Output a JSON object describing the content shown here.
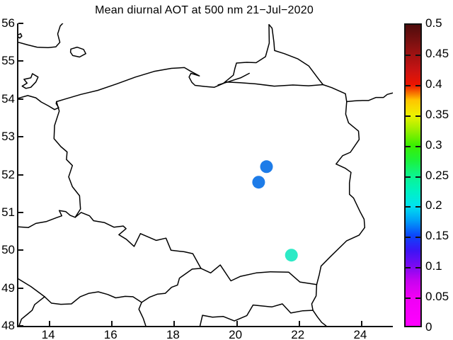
{
  "title": "Mean diurnal AOT at 500 nm 21−Jul−2020",
  "axes": {
    "x": {
      "range": [
        13,
        25
      ],
      "ticks": [
        14,
        16,
        18,
        20,
        22,
        24
      ]
    },
    "y": {
      "range": [
        48,
        56
      ],
      "ticks": [
        48,
        49,
        50,
        51,
        52,
        53,
        54,
        55,
        56
      ]
    }
  },
  "colorbar": {
    "range": [
      0,
      0.5
    ],
    "tick_values": [
      0,
      0.05,
      0.1,
      0.15,
      0.2,
      0.25,
      0.3,
      0.35,
      0.4,
      0.45,
      0.5
    ],
    "tick_labels": [
      "0",
      "0.05",
      "0.1",
      "0.15",
      "0.2",
      "0.25",
      "0.3",
      "0.35",
      "0.4",
      "0.45",
      "0.5"
    ],
    "gradient": [
      {
        "v": 0.0,
        "color": "#ff00ff"
      },
      {
        "v": 0.05,
        "color": "#ee00f4"
      },
      {
        "v": 0.075,
        "color": "#c603f0"
      },
      {
        "v": 0.1,
        "color": "#7a0af2"
      },
      {
        "v": 0.125,
        "color": "#3c14f5"
      },
      {
        "v": 0.15,
        "color": "#0b46fa"
      },
      {
        "v": 0.175,
        "color": "#00a0f8"
      },
      {
        "v": 0.2,
        "color": "#00e4ee"
      },
      {
        "v": 0.225,
        "color": "#00f2c0"
      },
      {
        "v": 0.25,
        "color": "#0cf48c"
      },
      {
        "v": 0.275,
        "color": "#1cf23a"
      },
      {
        "v": 0.3,
        "color": "#3bef00"
      },
      {
        "v": 0.325,
        "color": "#9aef00"
      },
      {
        "v": 0.35,
        "color": "#eef200"
      },
      {
        "v": 0.375,
        "color": "#ffc400"
      },
      {
        "v": 0.4,
        "color": "#ee1500"
      },
      {
        "v": 0.425,
        "color": "#c81313"
      },
      {
        "v": 0.45,
        "color": "#a01212"
      },
      {
        "v": 0.475,
        "color": "#761010"
      },
      {
        "v": 0.5,
        "color": "#4f0c0c"
      }
    ]
  },
  "chart_data": {
    "type": "scatter",
    "title": "Mean diurnal AOT at 500 nm 21−Jul−2020",
    "xlabel": "",
    "ylabel": "",
    "x_range_lon": [
      13,
      25
    ],
    "y_range_lat": [
      48,
      56
    ],
    "colorbar_range": [
      0,
      0.5
    ],
    "marker_radius_px": 9,
    "points": [
      {
        "lon": 20.95,
        "lat": 52.21,
        "aot_estimate": 0.16,
        "color": "#1e7ce8"
      },
      {
        "lon": 20.7,
        "lat": 51.8,
        "aot_estimate": 0.16,
        "color": "#1e7ce8"
      },
      {
        "lon": 21.75,
        "lat": 49.87,
        "aot_estimate": 0.23,
        "color": "#2deac6"
      }
    ]
  },
  "map": {
    "stroke": "#000000",
    "stroke_width": 1.5,
    "polylines": {
      "sweden_coast": [
        [
          13.0,
          55.5
        ],
        [
          13.3,
          55.43
        ],
        [
          13.6,
          55.37
        ],
        [
          13.95,
          55.36
        ],
        [
          14.2,
          55.38
        ],
        [
          14.33,
          55.5
        ],
        [
          14.26,
          55.72
        ],
        [
          14.34,
          55.93
        ],
        [
          14.42,
          56.0
        ]
      ],
      "sweden_islet": [
        [
          13.0,
          55.7
        ],
        [
          13.07,
          55.73
        ],
        [
          13.11,
          55.66
        ],
        [
          13.04,
          55.61
        ],
        [
          13.0,
          55.64
        ]
      ],
      "bornholm": [
        [
          14.68,
          55.32
        ],
        [
          14.88,
          55.37
        ],
        [
          15.09,
          55.31
        ],
        [
          15.16,
          55.2
        ],
        [
          14.96,
          55.11
        ],
        [
          14.74,
          55.15
        ],
        [
          14.67,
          55.24
        ],
        [
          14.68,
          55.32
        ]
      ],
      "ruegen": [
        [
          13.12,
          54.34
        ],
        [
          13.28,
          54.42
        ],
        [
          13.18,
          54.52
        ],
        [
          13.4,
          54.56
        ],
        [
          13.45,
          54.67
        ],
        [
          13.63,
          54.58
        ],
        [
          13.56,
          54.45
        ],
        [
          13.4,
          54.31
        ],
        [
          13.24,
          54.28
        ],
        [
          13.12,
          54.34
        ]
      ],
      "coastline": [
        [
          13.0,
          54.02
        ],
        [
          13.3,
          54.09
        ],
        [
          13.56,
          54.03
        ],
        [
          13.73,
          53.92
        ],
        [
          13.96,
          53.82
        ],
        [
          14.16,
          53.72
        ],
        [
          14.29,
          53.77
        ],
        [
          14.21,
          53.88
        ],
        [
          14.22,
          53.93
        ],
        [
          14.5,
          54.0
        ],
        [
          15.0,
          54.12
        ],
        [
          15.55,
          54.23
        ],
        [
          16.15,
          54.4
        ],
        [
          16.75,
          54.58
        ],
        [
          17.35,
          54.73
        ],
        [
          17.9,
          54.81
        ],
        [
          18.32,
          54.83
        ],
        [
          18.51,
          54.74
        ],
        [
          18.8,
          54.61
        ],
        [
          18.53,
          54.68
        ],
        [
          18.47,
          54.58
        ],
        [
          18.56,
          54.44
        ],
        [
          18.66,
          54.36
        ],
        [
          18.98,
          54.33
        ],
        [
          19.28,
          54.31
        ],
        [
          19.56,
          54.41
        ],
        [
          19.89,
          54.63
        ],
        [
          19.94,
          54.81
        ],
        [
          19.99,
          54.95
        ],
        [
          20.32,
          54.97
        ],
        [
          20.62,
          54.96
        ],
        [
          20.92,
          55.12
        ],
        [
          21.04,
          55.48
        ],
        [
          21.03,
          55.97
        ],
        [
          21.13,
          55.87
        ],
        [
          21.19,
          55.5
        ],
        [
          21.21,
          55.28
        ],
        [
          21.52,
          55.2
        ],
        [
          21.96,
          55.06
        ],
        [
          22.31,
          54.87
        ],
        [
          22.61,
          54.54
        ],
        [
          22.76,
          54.38
        ]
      ],
      "vistula_lagoon": [
        [
          19.4,
          54.37
        ],
        [
          19.78,
          54.47
        ],
        [
          20.12,
          54.56
        ],
        [
          20.4,
          54.68
        ]
      ],
      "pl_ru_border": [
        [
          19.63,
          54.45
        ],
        [
          20.1,
          54.43
        ],
        [
          20.6,
          54.4
        ],
        [
          21.2,
          54.34
        ],
        [
          21.8,
          54.37
        ],
        [
          22.3,
          54.35
        ],
        [
          22.76,
          54.38
        ]
      ],
      "pl_east_border": [
        [
          22.76,
          54.38
        ],
        [
          23.04,
          54.3
        ],
        [
          23.48,
          54.14
        ],
        [
          23.52,
          53.93
        ],
        [
          23.49,
          53.6
        ],
        [
          23.58,
          53.37
        ],
        [
          23.9,
          53.15
        ],
        [
          23.92,
          52.93
        ],
        [
          23.64,
          52.59
        ],
        [
          23.39,
          52.5
        ],
        [
          23.18,
          52.28
        ],
        [
          23.47,
          52.17
        ],
        [
          23.66,
          52.06
        ],
        [
          23.61,
          51.78
        ],
        [
          23.61,
          51.48
        ],
        [
          23.74,
          51.38
        ],
        [
          23.95,
          51.02
        ],
        [
          24.08,
          50.82
        ],
        [
          24.1,
          50.6
        ],
        [
          23.92,
          50.4
        ],
        [
          23.52,
          50.25
        ],
        [
          23.0,
          49.83
        ],
        [
          22.7,
          49.58
        ],
        [
          22.64,
          49.35
        ],
        [
          22.56,
          49.09
        ]
      ],
      "pl_de_border": [
        [
          14.22,
          53.93
        ],
        [
          14.31,
          53.68
        ],
        [
          14.16,
          53.3
        ],
        [
          14.14,
          52.95
        ],
        [
          14.36,
          52.74
        ],
        [
          14.56,
          52.6
        ],
        [
          14.54,
          52.4
        ],
        [
          14.73,
          52.24
        ],
        [
          14.61,
          51.94
        ],
        [
          14.73,
          51.68
        ],
        [
          14.96,
          51.44
        ],
        [
          14.99,
          51.09
        ],
        [
          14.82,
          50.87
        ]
      ],
      "pl_south_border": [
        [
          14.82,
          50.87
        ],
        [
          15.01,
          51.0
        ],
        [
          15.28,
          50.91
        ],
        [
          15.41,
          50.78
        ],
        [
          15.76,
          50.73
        ],
        [
          16.06,
          50.61
        ],
        [
          16.36,
          50.64
        ],
        [
          16.45,
          50.57
        ],
        [
          16.22,
          50.41
        ],
        [
          16.46,
          50.29
        ],
        [
          16.71,
          50.1
        ],
        [
          16.91,
          50.44
        ],
        [
          17.42,
          50.26
        ],
        [
          17.73,
          50.32
        ],
        [
          17.89,
          50.0
        ],
        [
          18.31,
          49.96
        ],
        [
          18.59,
          49.91
        ],
        [
          18.85,
          49.52
        ],
        [
          19.16,
          49.4
        ],
        [
          19.47,
          49.61
        ],
        [
          19.81,
          49.19
        ],
        [
          20.12,
          49.31
        ],
        [
          20.62,
          49.4
        ],
        [
          21.08,
          49.43
        ],
        [
          21.66,
          49.42
        ],
        [
          22.02,
          49.16
        ],
        [
          22.56,
          49.09
        ]
      ],
      "de_cz_border": [
        [
          13.0,
          50.62
        ],
        [
          13.32,
          50.6
        ],
        [
          13.56,
          50.71
        ],
        [
          13.9,
          50.76
        ],
        [
          14.22,
          50.86
        ],
        [
          14.39,
          50.91
        ],
        [
          14.31,
          51.05
        ],
        [
          14.52,
          51.02
        ],
        [
          14.66,
          50.92
        ],
        [
          14.82,
          50.87
        ]
      ],
      "de_cz_south": [
        [
          13.0,
          49.24
        ],
        [
          13.4,
          49.04
        ],
        [
          13.66,
          48.88
        ],
        [
          13.84,
          48.77
        ]
      ],
      "de_at_border": [
        [
          13.84,
          48.77
        ],
        [
          13.52,
          48.56
        ],
        [
          13.44,
          48.41
        ],
        [
          13.28,
          48.3
        ],
        [
          13.1,
          48.18
        ],
        [
          13.02,
          48.0
        ]
      ],
      "cz_at_border": [
        [
          13.84,
          48.77
        ],
        [
          14.06,
          48.6
        ],
        [
          14.36,
          48.57
        ],
        [
          14.7,
          48.58
        ],
        [
          14.98,
          48.77
        ],
        [
          15.26,
          48.86
        ],
        [
          15.56,
          48.9
        ],
        [
          15.86,
          48.83
        ],
        [
          16.12,
          48.74
        ],
        [
          16.42,
          48.78
        ],
        [
          16.67,
          48.77
        ],
        [
          16.95,
          48.62
        ]
      ],
      "at_sk_border": [
        [
          16.95,
          48.62
        ],
        [
          16.86,
          48.44
        ],
        [
          17.0,
          48.2
        ],
        [
          17.08,
          48.0
        ]
      ],
      "cz_sk_border": [
        [
          16.95,
          48.62
        ],
        [
          17.21,
          48.76
        ],
        [
          17.46,
          48.84
        ],
        [
          17.71,
          48.86
        ],
        [
          17.91,
          49.02
        ],
        [
          18.1,
          49.08
        ],
        [
          18.16,
          49.26
        ],
        [
          18.4,
          49.4
        ],
        [
          18.57,
          49.5
        ],
        [
          18.85,
          49.52
        ]
      ],
      "sk_hu_border": [
        [
          18.82,
          48.0
        ],
        [
          18.9,
          48.28
        ],
        [
          19.22,
          48.23
        ],
        [
          19.56,
          48.25
        ],
        [
          19.92,
          48.13
        ],
        [
          20.32,
          48.27
        ],
        [
          20.52,
          48.55
        ],
        [
          21.12,
          48.5
        ],
        [
          21.46,
          48.58
        ],
        [
          21.73,
          48.34
        ],
        [
          22.12,
          48.4
        ],
        [
          22.44,
          48.41
        ]
      ],
      "sk_ua_border": [
        [
          22.56,
          49.09
        ],
        [
          22.54,
          48.79
        ],
        [
          22.4,
          48.58
        ],
        [
          22.44,
          48.41
        ],
        [
          22.58,
          48.24
        ],
        [
          22.72,
          48.09
        ],
        [
          22.86,
          48.0
        ]
      ],
      "lt_by_border": [
        [
          23.52,
          53.93
        ],
        [
          23.78,
          53.95
        ],
        [
          24.02,
          53.96
        ],
        [
          24.22,
          53.96
        ],
        [
          24.46,
          54.04
        ],
        [
          24.7,
          54.04
        ],
        [
          24.82,
          54.12
        ],
        [
          25.0,
          54.16
        ]
      ]
    }
  }
}
